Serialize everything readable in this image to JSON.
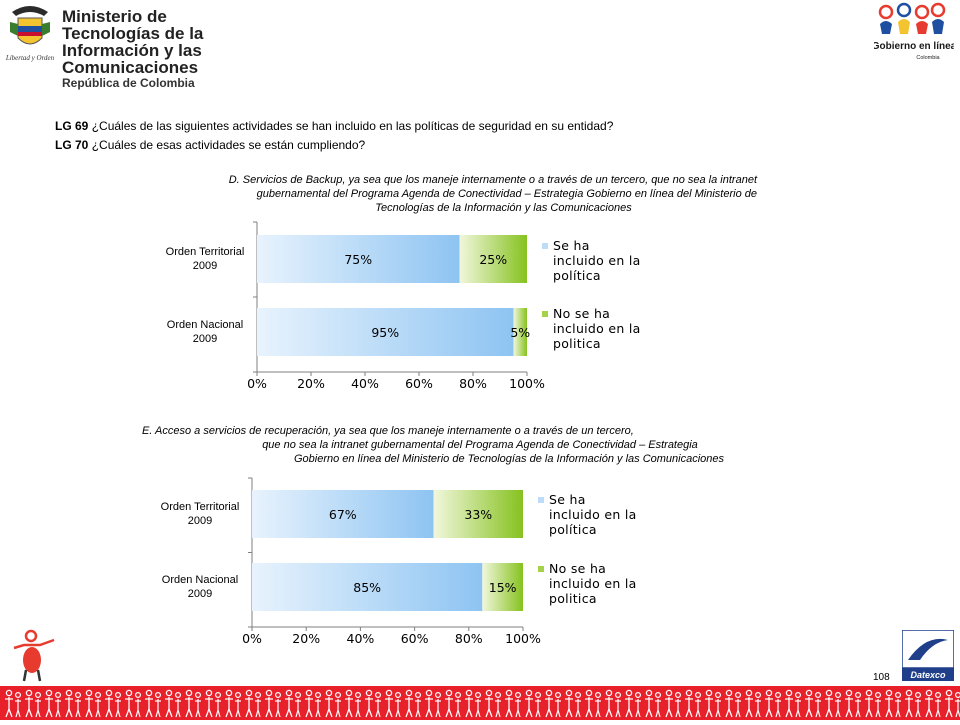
{
  "header": {
    "ministry_line1": "Ministerio de Tecnologías de la",
    "ministry_line2": "Información y las Comunicaciones",
    "ministry_line3": "República de Colombia",
    "seal_motto": "Libertad y Orden",
    "right_logo_line1": "Gobierno en línea",
    "right_logo_line2": "Colombia"
  },
  "questions": {
    "q1_code": "LG 69",
    "q1_text": "¿Cuáles  de las siguientes actividades se han incluido en las políticas de seguridad en su entidad?",
    "q2_code": "LG 70",
    "q2_text": "¿Cuáles  de esas actividades se están cumpliendo?"
  },
  "footer": {
    "page_number": "108",
    "datexco_label": "Datexco"
  },
  "colors": {
    "series1_light": "#e4f1fd",
    "series1_dark": "#8ec4f2",
    "series2_light": "#eef6d6",
    "series2_dark": "#86c21f",
    "accent_red": "#e8202a"
  },
  "chart_data": [
    {
      "type": "bar",
      "orientation": "horizontal",
      "stacked": true,
      "title_lines": [
        "D. Servicios de Backup, ya sea que los maneje internamente  o a través  de un tercero, que no sea la intranet",
        "gubernamental  del Programa Agenda de Conectividad – Estrategia Gobierno  en línea del Ministerio de",
        "Tecnologías de la Información y las Comunicaciones"
      ],
      "categories": [
        [
          "Orden Territorial",
          "2009"
        ],
        [
          "Orden Nacional",
          "2009"
        ]
      ],
      "series": [
        {
          "name_lines": [
            "Se ha",
            "incluido en la",
            "política"
          ],
          "values": [
            75,
            95
          ],
          "labels": [
            "75%",
            "95%"
          ]
        },
        {
          "name_lines": [
            "No se ha",
            "incluido en la",
            "politica"
          ],
          "values": [
            25,
            5
          ],
          "labels": [
            "25%",
            "5%"
          ]
        }
      ],
      "xlim": [
        0,
        100
      ],
      "xticks": [
        "0%",
        "20%",
        "40%",
        "60%",
        "80%",
        "100%"
      ],
      "legend": "right"
    },
    {
      "type": "bar",
      "orientation": "horizontal",
      "stacked": true,
      "title_lines": [
        "E. Acceso a servicios de  recuperación,  ya sea que los maneje internamente  o a través  de un tercero,",
        "que no sea la intranet gubernamental  del Programa Agenda de Conectividad – Estrategia",
        "Gobierno  en línea del Ministerio de Tecnologías de la Información y las Comunicaciones"
      ],
      "categories": [
        [
          "Orden Territorial",
          "2009"
        ],
        [
          "Orden Nacional",
          "2009"
        ]
      ],
      "series": [
        {
          "name_lines": [
            "Se ha",
            "incluido en la",
            "política"
          ],
          "values": [
            67,
            85
          ],
          "labels": [
            "67%",
            "85%"
          ]
        },
        {
          "name_lines": [
            "No se ha",
            "incluido en la",
            "politica"
          ],
          "values": [
            33,
            15
          ],
          "labels": [
            "33%",
            "15%"
          ]
        }
      ],
      "xlim": [
        0,
        100
      ],
      "xticks": [
        "0%",
        "20%",
        "40%",
        "60%",
        "80%",
        "100%"
      ],
      "legend": "right"
    }
  ]
}
